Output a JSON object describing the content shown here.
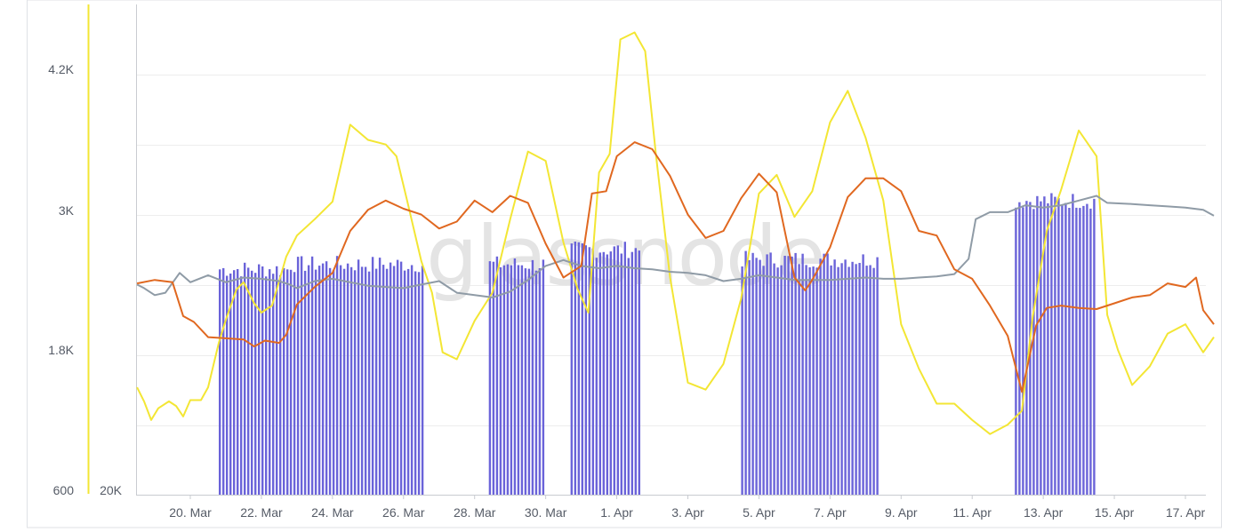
{
  "watermark": "glassnode",
  "colors": {
    "bars": "#6a63d9",
    "grey_line": "#8f9ba6",
    "orange_line": "#e06820",
    "yellow_line": "#f3e634",
    "grid": "#ededed",
    "axis": "#c9ccd1",
    "text": "#555b66"
  },
  "chart_data": {
    "type": "line",
    "title": "",
    "xlabel": "",
    "ylabel": "",
    "x_range_days": [
      0,
      30.5
    ],
    "x_ticks": [
      {
        "label": "20. Mar",
        "day": 1.5
      },
      {
        "label": "22. Mar",
        "day": 3.5
      },
      {
        "label": "24. Mar",
        "day": 5.5
      },
      {
        "label": "26. Mar",
        "day": 7.5
      },
      {
        "label": "28. Mar",
        "day": 9.5
      },
      {
        "label": "30. Mar",
        "day": 11.5
      },
      {
        "label": "1. Apr",
        "day": 13.5
      },
      {
        "label": "3. Apr",
        "day": 15.5
      },
      {
        "label": "5. Apr",
        "day": 17.5
      },
      {
        "label": "7. Apr",
        "day": 19.5
      },
      {
        "label": "9. Apr",
        "day": 21.5
      },
      {
        "label": "11. Apr",
        "day": 23.5
      },
      {
        "label": "13. Apr",
        "day": 25.5
      },
      {
        "label": "15. Apr",
        "day": 27.5
      },
      {
        "label": "17. Apr",
        "day": 29.5
      }
    ],
    "left_axis": {
      "ticks": [
        "4.2K",
        "3K",
        "1.8K",
        "600"
      ],
      "range": [
        600,
        4800
      ]
    },
    "secondary_axis": {
      "ticks": [
        "20K"
      ]
    },
    "bar_blocks": [
      {
        "start": 2.3,
        "end": 4.3,
        "level": 0.46
      },
      {
        "start": 4.3,
        "end": 8.1,
        "level": 0.47
      },
      {
        "start": 9.9,
        "end": 11.5,
        "level": 0.47
      },
      {
        "start": 12.2,
        "end": 14.2,
        "level": 0.5
      },
      {
        "start": 17.0,
        "end": 20.9,
        "level": 0.48
      },
      {
        "start": 24.7,
        "end": 27.0,
        "level": 0.6
      }
    ],
    "series": [
      {
        "name": "grey",
        "values": [
          [
            0,
            2400
          ],
          [
            0.2,
            2370
          ],
          [
            0.5,
            2310
          ],
          [
            0.8,
            2330
          ],
          [
            1.2,
            2500
          ],
          [
            1.5,
            2420
          ],
          [
            2.0,
            2480
          ],
          [
            2.5,
            2420
          ],
          [
            3.0,
            2460
          ],
          [
            3.5,
            2450
          ],
          [
            4.0,
            2430
          ],
          [
            4.3,
            2400
          ],
          [
            4.5,
            2370
          ],
          [
            5.0,
            2430
          ],
          [
            5.5,
            2450
          ],
          [
            6.0,
            2420
          ],
          [
            6.5,
            2390
          ],
          [
            7.0,
            2380
          ],
          [
            7.5,
            2370
          ],
          [
            8.0,
            2400
          ],
          [
            8.5,
            2430
          ],
          [
            9.0,
            2330
          ],
          [
            9.5,
            2310
          ],
          [
            10.0,
            2290
          ],
          [
            10.5,
            2340
          ],
          [
            11.0,
            2440
          ],
          [
            11.5,
            2560
          ],
          [
            12.0,
            2610
          ],
          [
            12.5,
            2560
          ],
          [
            13.0,
            2540
          ],
          [
            13.5,
            2560
          ],
          [
            14.0,
            2540
          ],
          [
            14.5,
            2530
          ],
          [
            15.0,
            2510
          ],
          [
            15.5,
            2500
          ],
          [
            16.0,
            2480
          ],
          [
            16.5,
            2430
          ],
          [
            17.0,
            2450
          ],
          [
            17.5,
            2480
          ],
          [
            18.0,
            2460
          ],
          [
            18.5,
            2440
          ],
          [
            19.0,
            2440
          ],
          [
            19.5,
            2440
          ],
          [
            20.0,
            2450
          ],
          [
            20.5,
            2460
          ],
          [
            21.0,
            2450
          ],
          [
            21.5,
            2450
          ],
          [
            22.0,
            2460
          ],
          [
            22.5,
            2470
          ],
          [
            23.0,
            2490
          ],
          [
            23.4,
            2620
          ],
          [
            23.6,
            2960
          ],
          [
            24.0,
            3020
          ],
          [
            24.5,
            3020
          ],
          [
            25.0,
            3080
          ],
          [
            25.5,
            3060
          ],
          [
            26.0,
            3080
          ],
          [
            26.5,
            3120
          ],
          [
            27.0,
            3160
          ],
          [
            27.3,
            3100
          ],
          [
            28.0,
            3090
          ],
          [
            28.5,
            3080
          ],
          [
            29.0,
            3070
          ],
          [
            29.5,
            3060
          ],
          [
            30.0,
            3040
          ],
          [
            30.3,
            2990
          ]
        ]
      },
      {
        "name": "orange",
        "values": [
          [
            0,
            2410
          ],
          [
            0.5,
            2440
          ],
          [
            1.0,
            2420
          ],
          [
            1.3,
            2130
          ],
          [
            1.6,
            2080
          ],
          [
            2.0,
            1950
          ],
          [
            2.5,
            1940
          ],
          [
            3.0,
            1930
          ],
          [
            3.3,
            1870
          ],
          [
            3.6,
            1920
          ],
          [
            4.0,
            1900
          ],
          [
            4.2,
            1970
          ],
          [
            4.5,
            2230
          ],
          [
            5.0,
            2380
          ],
          [
            5.5,
            2500
          ],
          [
            6.0,
            2860
          ],
          [
            6.5,
            3040
          ],
          [
            7.0,
            3120
          ],
          [
            7.5,
            3050
          ],
          [
            8.0,
            3000
          ],
          [
            8.5,
            2880
          ],
          [
            9.0,
            2940
          ],
          [
            9.5,
            3120
          ],
          [
            10.0,
            3020
          ],
          [
            10.5,
            3160
          ],
          [
            11.0,
            3100
          ],
          [
            11.5,
            2750
          ],
          [
            12.0,
            2460
          ],
          [
            12.5,
            2560
          ],
          [
            12.8,
            3180
          ],
          [
            13.2,
            3200
          ],
          [
            13.5,
            3500
          ],
          [
            14.0,
            3620
          ],
          [
            14.5,
            3560
          ],
          [
            15.0,
            3330
          ],
          [
            15.5,
            3000
          ],
          [
            16.0,
            2800
          ],
          [
            16.5,
            2860
          ],
          [
            17.0,
            3140
          ],
          [
            17.5,
            3350
          ],
          [
            18.0,
            3190
          ],
          [
            18.5,
            2460
          ],
          [
            18.8,
            2350
          ],
          [
            19.0,
            2440
          ],
          [
            19.5,
            2720
          ],
          [
            20.0,
            3150
          ],
          [
            20.5,
            3310
          ],
          [
            21.0,
            3310
          ],
          [
            21.5,
            3200
          ],
          [
            22.0,
            2860
          ],
          [
            22.5,
            2820
          ],
          [
            23.0,
            2530
          ],
          [
            23.5,
            2450
          ],
          [
            24.0,
            2220
          ],
          [
            24.5,
            1960
          ],
          [
            24.9,
            1480
          ],
          [
            25.3,
            2050
          ],
          [
            25.6,
            2200
          ],
          [
            26.0,
            2220
          ],
          [
            26.5,
            2200
          ],
          [
            27.0,
            2190
          ],
          [
            27.5,
            2240
          ],
          [
            28.0,
            2290
          ],
          [
            28.5,
            2310
          ],
          [
            29.0,
            2410
          ],
          [
            29.5,
            2380
          ],
          [
            29.8,
            2460
          ],
          [
            30.0,
            2180
          ],
          [
            30.3,
            2060
          ]
        ]
      },
      {
        "name": "yellow",
        "values": [
          [
            0,
            1520
          ],
          [
            0.2,
            1400
          ],
          [
            0.4,
            1240
          ],
          [
            0.6,
            1340
          ],
          [
            0.9,
            1400
          ],
          [
            1.1,
            1360
          ],
          [
            1.3,
            1270
          ],
          [
            1.5,
            1410
          ],
          [
            1.8,
            1410
          ],
          [
            2.0,
            1520
          ],
          [
            2.3,
            1900
          ],
          [
            2.5,
            2100
          ],
          [
            2.8,
            2360
          ],
          [
            3.0,
            2420
          ],
          [
            3.3,
            2240
          ],
          [
            3.5,
            2160
          ],
          [
            3.8,
            2220
          ],
          [
            4.2,
            2640
          ],
          [
            4.5,
            2820
          ],
          [
            5.0,
            2960
          ],
          [
            5.5,
            3110
          ],
          [
            6.0,
            3770
          ],
          [
            6.5,
            3640
          ],
          [
            7.0,
            3600
          ],
          [
            7.3,
            3500
          ],
          [
            7.6,
            3120
          ],
          [
            8.0,
            2600
          ],
          [
            8.3,
            2330
          ],
          [
            8.6,
            1820
          ],
          [
            9.0,
            1760
          ],
          [
            9.5,
            2090
          ],
          [
            10.0,
            2330
          ],
          [
            10.5,
            2960
          ],
          [
            11.0,
            3540
          ],
          [
            11.5,
            3460
          ],
          [
            12.0,
            2760
          ],
          [
            12.4,
            2360
          ],
          [
            12.7,
            2160
          ],
          [
            13.0,
            3360
          ],
          [
            13.3,
            3520
          ],
          [
            13.6,
            4500
          ],
          [
            14.0,
            4560
          ],
          [
            14.3,
            4400
          ],
          [
            14.6,
            3520
          ],
          [
            15.0,
            2460
          ],
          [
            15.5,
            1560
          ],
          [
            16.0,
            1500
          ],
          [
            16.5,
            1720
          ],
          [
            17.0,
            2280
          ],
          [
            17.5,
            3180
          ],
          [
            18.0,
            3340
          ],
          [
            18.5,
            2980
          ],
          [
            19.0,
            3200
          ],
          [
            19.5,
            3790
          ],
          [
            20.0,
            4060
          ],
          [
            20.5,
            3660
          ],
          [
            21.0,
            3120
          ],
          [
            21.5,
            2060
          ],
          [
            22.0,
            1680
          ],
          [
            22.5,
            1380
          ],
          [
            23.0,
            1380
          ],
          [
            23.5,
            1240
          ],
          [
            24.0,
            1120
          ],
          [
            24.5,
            1200
          ],
          [
            24.9,
            1320
          ],
          [
            25.2,
            2120
          ],
          [
            25.6,
            2860
          ],
          [
            26.0,
            3210
          ],
          [
            26.5,
            3720
          ],
          [
            27.0,
            3500
          ],
          [
            27.3,
            2140
          ],
          [
            27.6,
            1840
          ],
          [
            28.0,
            1540
          ],
          [
            28.5,
            1700
          ],
          [
            29.0,
            1980
          ],
          [
            29.5,
            2060
          ],
          [
            30.0,
            1820
          ],
          [
            30.3,
            1950
          ]
        ]
      }
    ]
  }
}
